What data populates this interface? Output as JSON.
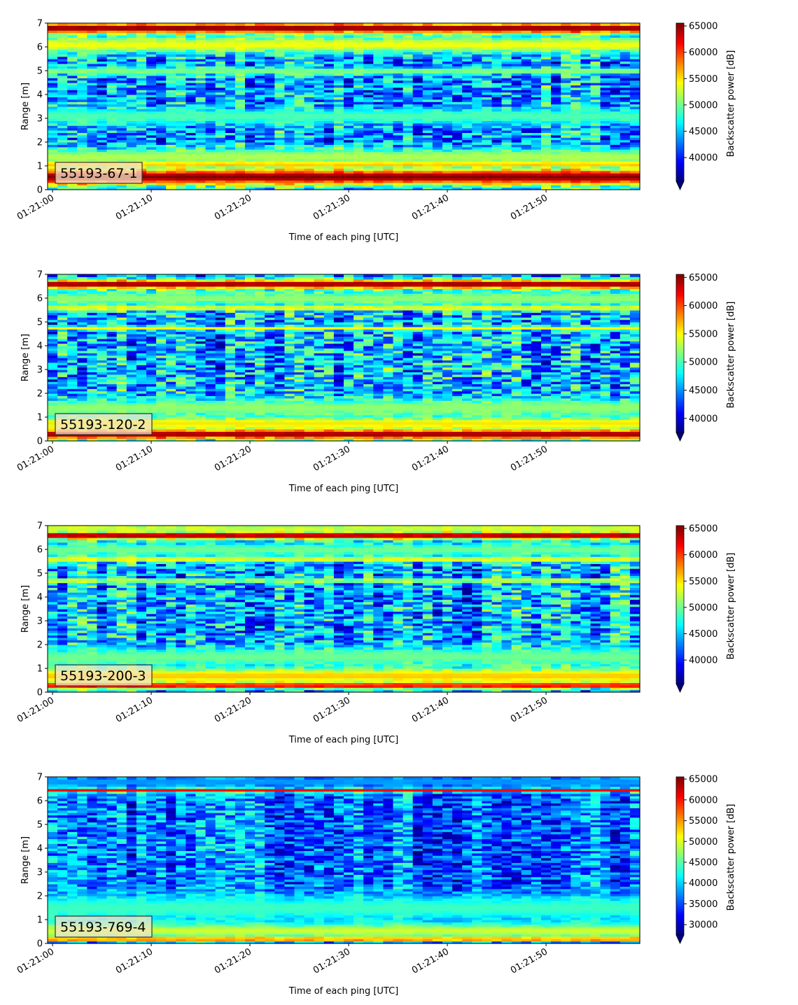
{
  "figure": {
    "panel_names": [
      "55193-67-1",
      "55193-120-2",
      "55193-200-3",
      "55193-769-4"
    ]
  },
  "colors": {
    "jet": [
      "#00007f",
      "#0000ff",
      "#007fff",
      "#00ffff",
      "#7fff7f",
      "#ffff00",
      "#ff7f00",
      "#ff0000",
      "#7f0000"
    ],
    "label_box_edge": "#333333"
  },
  "chart_data": [
    {
      "type": "heatmap",
      "label": "55193-67-1",
      "xlabel": "Time of each ping [UTC]",
      "ylabel": "Range [m]",
      "xticks": [
        "01:21:00",
        "01:21:10",
        "01:21:20",
        "01:21:30",
        "01:21:40",
        "01:21:50"
      ],
      "xlim_seconds": [
        -0.5,
        59.5
      ],
      "ylim": [
        0,
        7
      ],
      "yticks": [
        0,
        1,
        2,
        3,
        4,
        5,
        6,
        7
      ],
      "colorbar": {
        "label": "Backscatter power [dB]",
        "vmin": 35500,
        "vmax": 65535,
        "ticks": [
          40000,
          45000,
          50000,
          55000,
          60000,
          65000
        ],
        "extend": "min"
      },
      "features": {
        "base": 44000,
        "layers": [
          {
            "center": 0.55,
            "width": 0.35,
            "value": 65535
          },
          {
            "center": 1.1,
            "width": 0.12,
            "value": 60000
          },
          {
            "center": 1.4,
            "width": 0.35,
            "value": 52000
          },
          {
            "center": 3.1,
            "width": 0.35,
            "value": 49000
          },
          {
            "center": 5.0,
            "width": 0.15,
            "value": 51000
          },
          {
            "center": 6.1,
            "width": 0.35,
            "value": 54000
          },
          {
            "center": 6.8,
            "width": 0.22,
            "value": 65535
          }
        ]
      }
    },
    {
      "type": "heatmap",
      "label": "55193-120-2",
      "xlabel": "Time of each ping [UTC]",
      "ylabel": "Range [m]",
      "xticks": [
        "01:21:00",
        "01:21:10",
        "01:21:20",
        "01:21:30",
        "01:21:40",
        "01:21:50"
      ],
      "xlim_seconds": [
        -0.5,
        59.5
      ],
      "ylim": [
        0,
        7
      ],
      "yticks": [
        0,
        1,
        2,
        3,
        4,
        5,
        6,
        7
      ],
      "colorbar": {
        "label": "Backscatter power [dB]",
        "vmin": 37500,
        "vmax": 65535,
        "ticks": [
          40000,
          45000,
          50000,
          55000,
          60000,
          65000
        ],
        "extend": "min"
      },
      "features": {
        "base": 46000,
        "layers": [
          {
            "center": 0.3,
            "width": 0.22,
            "value": 65535
          },
          {
            "center": 0.75,
            "width": 0.25,
            "value": 56000
          },
          {
            "center": 1.4,
            "width": 0.4,
            "value": 52000
          },
          {
            "center": 4.75,
            "width": 0.08,
            "value": 55000
          },
          {
            "center": 5.6,
            "width": 0.1,
            "value": 56000
          },
          {
            "center": 6.0,
            "width": 0.3,
            "value": 52000
          },
          {
            "center": 6.6,
            "width": 0.18,
            "value": 65535
          }
        ]
      }
    },
    {
      "type": "heatmap",
      "label": "55193-200-3",
      "xlabel": "Time of each ping [UTC]",
      "ylabel": "Range [m]",
      "xticks": [
        "01:21:00",
        "01:21:10",
        "01:21:20",
        "01:21:30",
        "01:21:40",
        "01:21:50"
      ],
      "xlim_seconds": [
        -0.5,
        59.5
      ],
      "ylim": [
        0,
        7
      ],
      "yticks": [
        0,
        1,
        2,
        3,
        4,
        5,
        6,
        7
      ],
      "colorbar": {
        "label": "Backscatter power [dB]",
        "vmin": 35500,
        "vmax": 65535,
        "ticks": [
          40000,
          45000,
          50000,
          55000,
          60000,
          65000
        ],
        "extend": "min"
      },
      "features": {
        "base": 44500,
        "layers": [
          {
            "center": 0.3,
            "width": 0.12,
            "value": 65535
          },
          {
            "center": 0.7,
            "width": 0.35,
            "value": 56000
          },
          {
            "center": 1.5,
            "width": 0.4,
            "value": 50000
          },
          {
            "center": 4.7,
            "width": 0.08,
            "value": 54000
          },
          {
            "center": 5.6,
            "width": 0.1,
            "value": 56000
          },
          {
            "center": 6.0,
            "width": 0.3,
            "value": 50000
          },
          {
            "center": 6.6,
            "width": 0.15,
            "value": 65535
          },
          {
            "center": 6.9,
            "width": 0.12,
            "value": 54000
          }
        ]
      }
    },
    {
      "type": "heatmap",
      "label": "55193-769-4",
      "xlabel": "Time of each ping [UTC]",
      "ylabel": "Range [m]",
      "xticks": [
        "01:21:00",
        "01:21:10",
        "01:21:20",
        "01:21:30",
        "01:21:40",
        "01:21:50"
      ],
      "xlim_seconds": [
        -0.5,
        59.5
      ],
      "ylim": [
        0,
        7
      ],
      "yticks": [
        0,
        1,
        2,
        3,
        4,
        5,
        6,
        7
      ],
      "colorbar": {
        "label": "Backscatter power [dB]",
        "vmin": 27500,
        "vmax": 65535,
        "ticks": [
          30000,
          35000,
          40000,
          45000,
          50000,
          55000,
          60000,
          65000
        ],
        "extend": "min"
      },
      "features": {
        "base": 36000,
        "layers": [
          {
            "center": 0.2,
            "width": 0.08,
            "value": 65535
          },
          {
            "center": 0.55,
            "width": 0.35,
            "value": 50000
          },
          {
            "center": 1.5,
            "width": 0.6,
            "value": 44000
          },
          {
            "center": 6.45,
            "width": 0.08,
            "value": 62000
          },
          {
            "center": 6.8,
            "width": 0.2,
            "value": 38000
          }
        ]
      }
    }
  ]
}
